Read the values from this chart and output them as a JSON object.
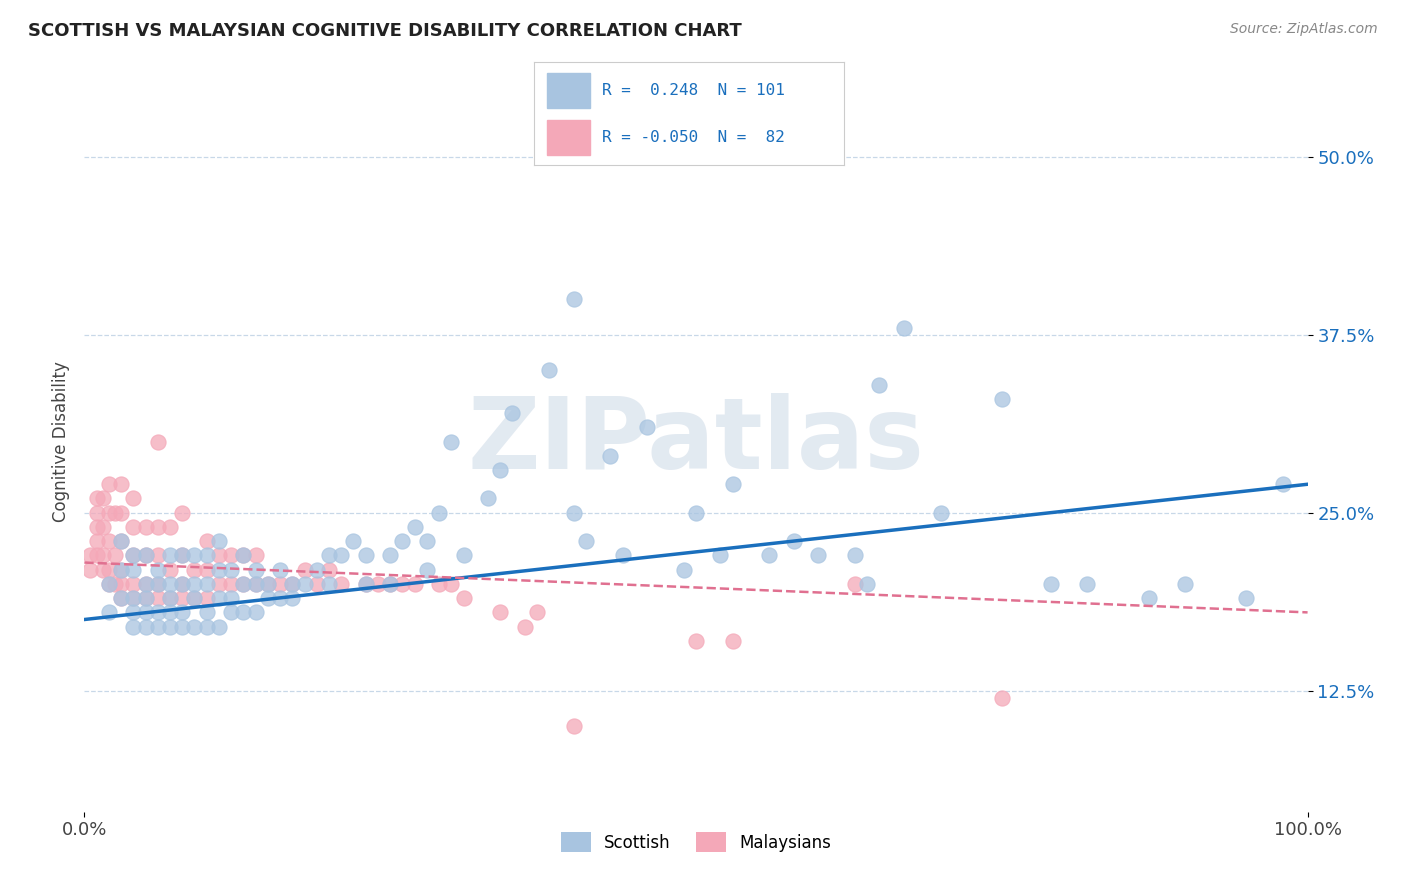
{
  "title": "SCOTTISH VS MALAYSIAN COGNITIVE DISABILITY CORRELATION CHART",
  "source": "Source: ZipAtlas.com",
  "ylabel": "Cognitive Disability",
  "xlim": [
    0.0,
    1.0
  ],
  "ylim": [
    0.04,
    0.56
  ],
  "xticks": [
    0.0,
    1.0
  ],
  "xticklabels": [
    "0.0%",
    "100.0%"
  ],
  "ytick_positions": [
    0.125,
    0.25,
    0.375,
    0.5
  ],
  "ytick_labels": [
    "12.5%",
    "25.0%",
    "37.5%",
    "50.0%"
  ],
  "scottish_color": "#a8c4e0",
  "malaysian_color": "#f4a8b8",
  "blue_line_color": "#1a6fbd",
  "pink_line_color": "#e07090",
  "R_scottish": 0.248,
  "N_scottish": 101,
  "R_malaysian": -0.05,
  "N_malaysian": 82,
  "background_color": "#ffffff",
  "grid_color": "#c8d8e8",
  "watermark": "ZIPatlas",
  "watermark_color": "#d0dce8",
  "s_intercept": 0.175,
  "s_slope": 0.095,
  "m_intercept": 0.215,
  "m_slope": -0.035,
  "scottish_x": [
    0.02,
    0.02,
    0.03,
    0.03,
    0.03,
    0.04,
    0.04,
    0.04,
    0.04,
    0.04,
    0.05,
    0.05,
    0.05,
    0.05,
    0.05,
    0.06,
    0.06,
    0.06,
    0.06,
    0.07,
    0.07,
    0.07,
    0.07,
    0.07,
    0.08,
    0.08,
    0.08,
    0.08,
    0.09,
    0.09,
    0.09,
    0.09,
    0.1,
    0.1,
    0.1,
    0.1,
    0.11,
    0.11,
    0.11,
    0.11,
    0.12,
    0.12,
    0.12,
    0.13,
    0.13,
    0.13,
    0.14,
    0.14,
    0.14,
    0.15,
    0.15,
    0.16,
    0.16,
    0.17,
    0.17,
    0.18,
    0.19,
    0.2,
    0.2,
    0.21,
    0.22,
    0.23,
    0.23,
    0.25,
    0.25,
    0.26,
    0.27,
    0.28,
    0.28,
    0.29,
    0.3,
    0.31,
    0.33,
    0.34,
    0.35,
    0.38,
    0.4,
    0.4,
    0.41,
    0.43,
    0.44,
    0.46,
    0.49,
    0.5,
    0.52,
    0.53,
    0.56,
    0.58,
    0.6,
    0.63,
    0.64,
    0.65,
    0.67,
    0.7,
    0.75,
    0.79,
    0.82,
    0.87,
    0.9,
    0.95,
    0.98
  ],
  "scottish_y": [
    0.18,
    0.2,
    0.19,
    0.21,
    0.23,
    0.17,
    0.18,
    0.19,
    0.21,
    0.22,
    0.17,
    0.18,
    0.19,
    0.2,
    0.22,
    0.17,
    0.18,
    0.2,
    0.21,
    0.17,
    0.18,
    0.19,
    0.2,
    0.22,
    0.17,
    0.18,
    0.2,
    0.22,
    0.17,
    0.19,
    0.2,
    0.22,
    0.17,
    0.18,
    0.2,
    0.22,
    0.17,
    0.19,
    0.21,
    0.23,
    0.18,
    0.19,
    0.21,
    0.18,
    0.2,
    0.22,
    0.18,
    0.2,
    0.21,
    0.19,
    0.2,
    0.19,
    0.21,
    0.19,
    0.2,
    0.2,
    0.21,
    0.2,
    0.22,
    0.22,
    0.23,
    0.2,
    0.22,
    0.2,
    0.22,
    0.23,
    0.24,
    0.21,
    0.23,
    0.25,
    0.3,
    0.22,
    0.26,
    0.28,
    0.32,
    0.35,
    0.25,
    0.4,
    0.23,
    0.29,
    0.22,
    0.31,
    0.21,
    0.25,
    0.22,
    0.27,
    0.22,
    0.23,
    0.22,
    0.22,
    0.2,
    0.34,
    0.38,
    0.25,
    0.33,
    0.2,
    0.2,
    0.19,
    0.2,
    0.19,
    0.27
  ],
  "malaysian_x": [
    0.005,
    0.005,
    0.01,
    0.01,
    0.01,
    0.01,
    0.01,
    0.015,
    0.015,
    0.015,
    0.015,
    0.02,
    0.02,
    0.02,
    0.02,
    0.02,
    0.025,
    0.025,
    0.025,
    0.03,
    0.03,
    0.03,
    0.03,
    0.03,
    0.03,
    0.04,
    0.04,
    0.04,
    0.04,
    0.04,
    0.05,
    0.05,
    0.05,
    0.05,
    0.06,
    0.06,
    0.06,
    0.06,
    0.06,
    0.07,
    0.07,
    0.07,
    0.08,
    0.08,
    0.08,
    0.08,
    0.09,
    0.09,
    0.1,
    0.1,
    0.1,
    0.11,
    0.11,
    0.12,
    0.12,
    0.13,
    0.13,
    0.14,
    0.14,
    0.15,
    0.16,
    0.17,
    0.18,
    0.19,
    0.2,
    0.21,
    0.23,
    0.24,
    0.25,
    0.26,
    0.27,
    0.29,
    0.3,
    0.31,
    0.34,
    0.36,
    0.37,
    0.4,
    0.5,
    0.53,
    0.63,
    0.75
  ],
  "malaysian_y": [
    0.21,
    0.22,
    0.22,
    0.23,
    0.24,
    0.25,
    0.26,
    0.21,
    0.22,
    0.24,
    0.26,
    0.2,
    0.21,
    0.23,
    0.25,
    0.27,
    0.2,
    0.22,
    0.25,
    0.19,
    0.2,
    0.21,
    0.23,
    0.25,
    0.27,
    0.19,
    0.2,
    0.22,
    0.24,
    0.26,
    0.19,
    0.2,
    0.22,
    0.24,
    0.19,
    0.2,
    0.22,
    0.24,
    0.3,
    0.19,
    0.21,
    0.24,
    0.19,
    0.2,
    0.22,
    0.25,
    0.19,
    0.21,
    0.19,
    0.21,
    0.23,
    0.2,
    0.22,
    0.2,
    0.22,
    0.2,
    0.22,
    0.2,
    0.22,
    0.2,
    0.2,
    0.2,
    0.21,
    0.2,
    0.21,
    0.2,
    0.2,
    0.2,
    0.2,
    0.2,
    0.2,
    0.2,
    0.2,
    0.19,
    0.18,
    0.17,
    0.18,
    0.1,
    0.16,
    0.16,
    0.2,
    0.12
  ]
}
